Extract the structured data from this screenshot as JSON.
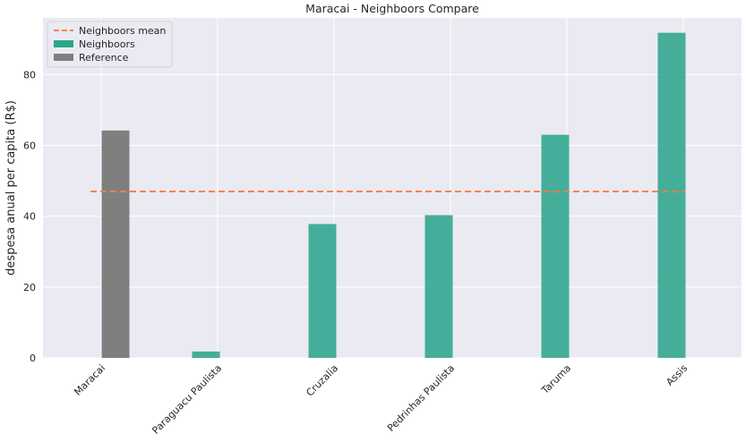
{
  "chart_data": {
    "type": "bar",
    "title": "Maracai - Neighboors Compare",
    "xlabel": "",
    "ylabel": "despesa anual per capita (R$)",
    "categories": [
      "Maracai",
      "Paraguacu Paulista",
      "Cruzalia",
      "Pedrinhas Paulista",
      "Taruma",
      "Assis"
    ],
    "ylim": [
      0,
      96
    ],
    "yticks": [
      0,
      20,
      40,
      60,
      80
    ],
    "grid": true,
    "legend_position": "top-left",
    "series": [
      {
        "name": "Neighboors",
        "color": "#2ca58d",
        "values": [
          null,
          1.8,
          37.8,
          40.3,
          63.0,
          91.8
        ]
      },
      {
        "name": "Reference",
        "color": "#7f7f7f",
        "values": [
          64.2,
          null,
          null,
          null,
          null,
          null
        ]
      }
    ],
    "mean_line": {
      "name": "Neighboors mean",
      "value": 47.0,
      "color": "#ff7f50"
    },
    "legend": [
      "Neighboors mean",
      "Neighboors",
      "Reference"
    ]
  }
}
